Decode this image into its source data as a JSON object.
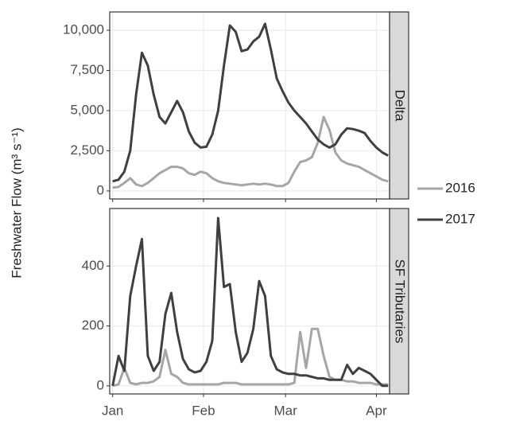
{
  "y_label": "Freshwater Flow (m³ s⁻¹)",
  "chart_data": [
    {
      "type": "line",
      "facet": "Delta",
      "x": [
        1,
        3,
        5,
        7,
        9,
        11,
        13,
        15,
        17,
        19,
        21,
        23,
        25,
        27,
        29,
        31,
        33,
        35,
        37,
        39,
        41,
        43,
        45,
        47,
        49,
        51,
        53,
        55,
        57,
        59,
        61,
        63,
        65,
        67,
        69,
        71,
        73,
        75,
        77,
        79,
        81,
        83,
        85,
        87,
        89,
        91,
        93,
        95
      ],
      "series": [
        {
          "name": "2016",
          "color": "#a6a6a6",
          "values": [
            200,
            250,
            500,
            800,
            400,
            300,
            500,
            800,
            1100,
            1300,
            1500,
            1500,
            1400,
            1100,
            1000,
            1200,
            1100,
            800,
            600,
            500,
            450,
            400,
            350,
            400,
            450,
            400,
            450,
            400,
            300,
            300,
            500,
            1200,
            1800,
            1900,
            2100,
            3000,
            4600,
            3800,
            2400,
            1900,
            1700,
            1600,
            1500,
            1300,
            1100,
            900,
            700,
            600
          ]
        },
        {
          "name": "2017",
          "color": "#404040",
          "values": [
            600,
            700,
            1200,
            2500,
            6000,
            8600,
            7800,
            6000,
            4600,
            4200,
            4900,
            5600,
            4900,
            3700,
            3000,
            2700,
            2750,
            3500,
            5000,
            7800,
            10300,
            9900,
            8700,
            8800,
            9300,
            9600,
            10400,
            8800,
            7000,
            6200,
            5500,
            5000,
            4600,
            4200,
            3700,
            3200,
            2900,
            2700,
            2900,
            3500,
            3900,
            3850,
            3750,
            3600,
            3100,
            2700,
            2400,
            2200
          ]
        }
      ],
      "xlim": [
        0,
        95.5
      ],
      "xticks": [
        1,
        32,
        60,
        91
      ],
      "ylim": [
        -500,
        11140
      ],
      "yticks": [
        0,
        {
          "value": 2500,
          "label": "2,500"
        },
        {
          "value": 5000,
          "label": "5,000"
        },
        {
          "value": 7500,
          "label": "7,500"
        },
        {
          "value": 10000,
          "label": "10,000"
        }
      ],
      "grid": true
    },
    {
      "type": "line",
      "facet": "SF Tributaries",
      "x": [
        1,
        3,
        5,
        7,
        9,
        11,
        13,
        15,
        17,
        19,
        21,
        23,
        25,
        27,
        29,
        31,
        33,
        35,
        37,
        39,
        41,
        43,
        45,
        47,
        49,
        51,
        53,
        55,
        57,
        59,
        61,
        63,
        65,
        67,
        69,
        71,
        73,
        75,
        77,
        79,
        81,
        83,
        85,
        87,
        89,
        91,
        93,
        95
      ],
      "series": [
        {
          "color": "#a6a6a6",
          "values": [
            0,
            5,
            60,
            10,
            5,
            10,
            10,
            15,
            30,
            120,
            40,
            30,
            10,
            5,
            5,
            5,
            5,
            5,
            5,
            10,
            10,
            10,
            5,
            5,
            5,
            5,
            5,
            5,
            5,
            5,
            5,
            10,
            180,
            60,
            190,
            190,
            100,
            30,
            20,
            20,
            15,
            15,
            10,
            10,
            10,
            5,
            5,
            5
          ]
        },
        {
          "color": "#404040",
          "values": [
            0,
            100,
            50,
            300,
            400,
            490,
            100,
            50,
            80,
            240,
            310,
            180,
            90,
            55,
            45,
            50,
            80,
            150,
            560,
            330,
            340,
            180,
            80,
            110,
            190,
            350,
            300,
            100,
            55,
            45,
            40,
            40,
            35,
            35,
            30,
            25,
            25,
            20,
            20,
            20,
            70,
            40,
            60,
            50,
            40,
            20,
            0,
            0
          ]
        }
      ],
      "xlim": [
        0,
        95.5
      ],
      "xticks": [
        {
          "value": 1,
          "label": "Jan"
        },
        {
          "value": 32,
          "label": "Feb"
        },
        {
          "value": 60,
          "label": "Mar"
        },
        {
          "value": 91,
          "label": "Apr"
        }
      ],
      "ylim": [
        -27,
        592
      ],
      "yticks": [
        0,
        200,
        400
      ],
      "grid": true
    }
  ]
}
